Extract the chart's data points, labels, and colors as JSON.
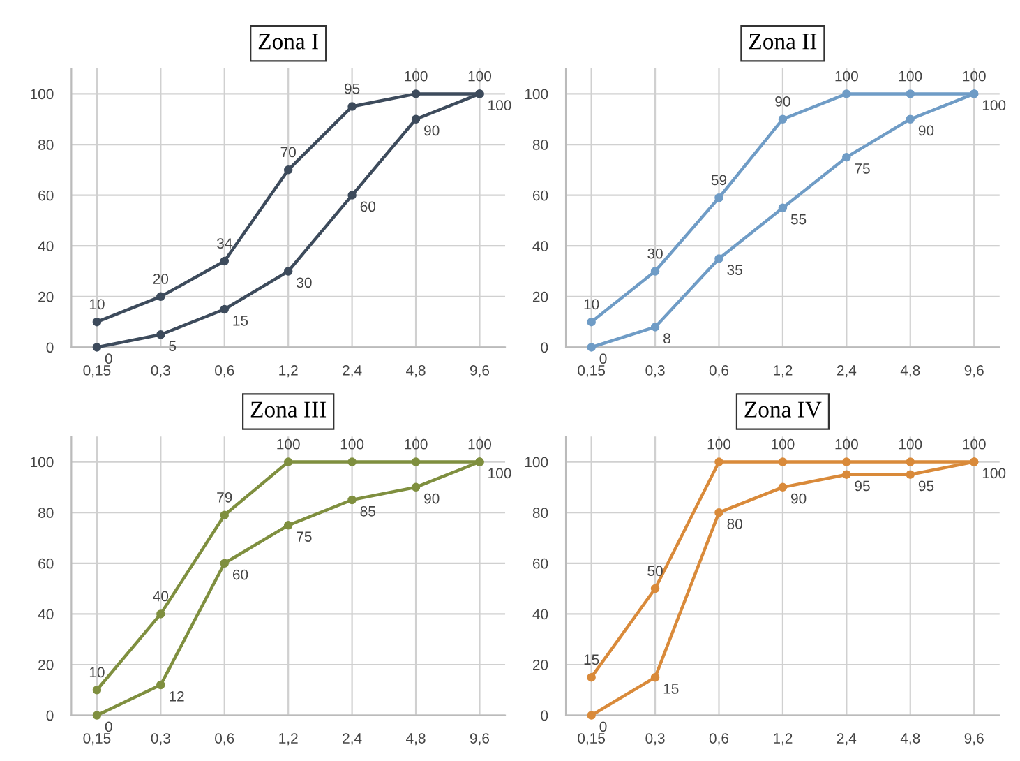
{
  "chart_data": [
    {
      "type": "line",
      "title": "Zona I",
      "categories": [
        "0,15",
        "0,3",
        "0,6",
        "1,2",
        "2,4",
        "4,8",
        "9,6"
      ],
      "ylim": [
        0,
        110
      ],
      "yticks": [
        0,
        20,
        40,
        60,
        80,
        100
      ],
      "grid": true,
      "marker": "circle",
      "line_style": "solid",
      "data_labels": true,
      "legend": false,
      "series": [
        {
          "color": "#3d4b5c",
          "values": [
            10,
            20,
            34,
            70,
            95,
            100,
            100
          ]
        },
        {
          "color": "#3d4b5c",
          "values": [
            0,
            5,
            15,
            30,
            60,
            90,
            100
          ]
        }
      ]
    },
    {
      "type": "line",
      "title": "Zona II",
      "categories": [
        "0,15",
        "0,3",
        "0,6",
        "1,2",
        "2,4",
        "4,8",
        "9,6"
      ],
      "ylim": [
        0,
        110
      ],
      "yticks": [
        0,
        20,
        40,
        60,
        80,
        100
      ],
      "grid": true,
      "marker": "circle",
      "line_style": "solid",
      "data_labels": true,
      "legend": false,
      "series": [
        {
          "color": "#6f9cc6",
          "values": [
            10,
            30,
            59,
            90,
            100,
            100,
            100
          ]
        },
        {
          "color": "#6f9cc6",
          "values": [
            0,
            8,
            35,
            55,
            75,
            90,
            100
          ]
        }
      ]
    },
    {
      "type": "line",
      "title": "Zona III",
      "categories": [
        "0,15",
        "0,3",
        "0,6",
        "1,2",
        "2,4",
        "4,8",
        "9,6"
      ],
      "ylim": [
        0,
        110
      ],
      "yticks": [
        0,
        20,
        40,
        60,
        80,
        100
      ],
      "grid": true,
      "marker": "circle",
      "line_style": "solid",
      "data_labels": true,
      "legend": false,
      "series": [
        {
          "color": "#7f8f3f",
          "values": [
            10,
            40,
            79,
            100,
            100,
            100,
            100
          ]
        },
        {
          "color": "#7f8f3f",
          "values": [
            0,
            12,
            60,
            75,
            85,
            90,
            100
          ]
        }
      ]
    },
    {
      "type": "line",
      "title": "Zona IV",
      "categories": [
        "0,15",
        "0,3",
        "0,6",
        "1,2",
        "2,4",
        "4,8",
        "9,6"
      ],
      "ylim": [
        0,
        110
      ],
      "yticks": [
        0,
        20,
        40,
        60,
        80,
        100
      ],
      "grid": true,
      "marker": "circle",
      "line_style": "solid",
      "data_labels": true,
      "legend": false,
      "series": [
        {
          "color": "#d98a3a",
          "values": [
            15,
            50,
            100,
            100,
            100,
            100,
            100
          ]
        },
        {
          "color": "#d98a3a",
          "values": [
            0,
            15,
            80,
            90,
            95,
            95,
            100
          ]
        }
      ]
    }
  ]
}
